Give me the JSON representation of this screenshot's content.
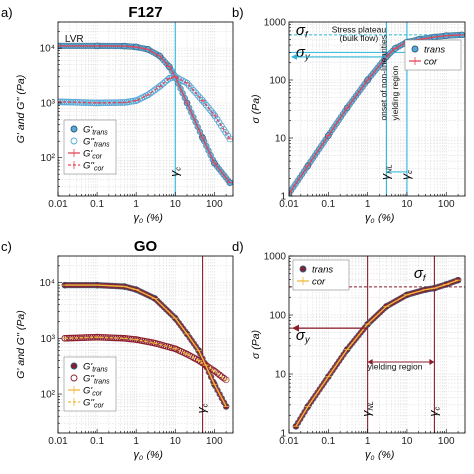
{
  "chart_data": [
    {
      "id": "a",
      "type": "line",
      "panel_label": "a)",
      "title": "F127",
      "xlabel": "γ0 (%)",
      "ylabel": "G' and G'' (Pa)",
      "xscale": "log",
      "yscale": "log",
      "xlim": [
        0.01,
        300
      ],
      "ylim": [
        20,
        30000
      ],
      "xticks": [
        0.01,
        0.1,
        1,
        10,
        100
      ],
      "xticklabels": [
        "0.01",
        "0.1",
        "1",
        "10",
        "100"
      ],
      "yticks": [
        100,
        1000,
        10000
      ],
      "yticklabels": [
        "10²",
        "10³",
        "10⁴"
      ],
      "grid": true,
      "annotations": [
        {
          "text": "LVR",
          "x": 0.015,
          "y": 13000
        },
        {
          "text": "γc",
          "x": 10,
          "y": 45
        }
      ],
      "vlines": [
        {
          "x": 10,
          "label": "γc",
          "color": "#29b6d8"
        }
      ],
      "legend": {
        "position": "lower-left",
        "entries": [
          "G'trans",
          "G''trans",
          "G'cor",
          "G''cor"
        ]
      },
      "series": [
        {
          "name": "G'trans",
          "style": "filled-circle",
          "color": "#5aa9d6",
          "x": [
            0.01,
            0.1,
            0.5,
            1,
            2,
            4,
            7,
            10,
            20,
            50,
            100,
            250
          ],
          "y": [
            11000,
            11000,
            10900,
            10500,
            9500,
            7200,
            4600,
            3000,
            1000,
            230,
            80,
            35
          ]
        },
        {
          "name": "G''trans",
          "style": "open-circle",
          "color": "#5aa9d6",
          "x": [
            0.01,
            0.1,
            0.5,
            1,
            2,
            4,
            7,
            10,
            20,
            50,
            100,
            250
          ],
          "y": [
            1050,
            1000,
            1020,
            1100,
            1400,
            2000,
            2800,
            3000,
            2300,
            1100,
            600,
            220
          ]
        },
        {
          "name": "G'cor",
          "style": "solid-line",
          "color": "#e0485a",
          "x": [
            0.01,
            0.1,
            0.5,
            1,
            2,
            4,
            7,
            10,
            20,
            50,
            100,
            250
          ],
          "y": [
            11000,
            11000,
            10900,
            10500,
            9500,
            7200,
            4600,
            3000,
            1000,
            230,
            80,
            35
          ]
        },
        {
          "name": "G''cor",
          "style": "dashed-line",
          "color": "#e0485a",
          "x": [
            0.01,
            0.1,
            0.5,
            1,
            2,
            4,
            7,
            10,
            20,
            50,
            100,
            250
          ],
          "y": [
            1050,
            1000,
            1020,
            1100,
            1400,
            2000,
            2800,
            3000,
            2300,
            1100,
            600,
            220
          ]
        }
      ]
    },
    {
      "id": "b",
      "type": "line",
      "panel_label": "b)",
      "title": "",
      "xlabel": "γ0 (%)",
      "ylabel": "σ (Pa)",
      "xscale": "log",
      "yscale": "log",
      "xlim": [
        0.01,
        300
      ],
      "ylim": [
        1,
        1000
      ],
      "xticks": [
        0.01,
        0.1,
        1,
        10,
        100
      ],
      "xticklabels": [
        "0.01",
        "0.1",
        "1",
        "10",
        "100"
      ],
      "yticks": [
        1,
        10,
        100,
        1000
      ],
      "yticklabels": [
        "1",
        "10",
        "100",
        "1000"
      ],
      "grid": true,
      "annotations": [
        {
          "text": "σf",
          "x": 0.015,
          "y": 600
        },
        {
          "text": "Stress plateau",
          "x": 0.6,
          "y": 660
        },
        {
          "text": "(bulk flow)",
          "x": 0.6,
          "y": 470
        },
        {
          "text": "σy",
          "x": 0.015,
          "y": 250
        },
        {
          "text": "onset of non-linearities",
          "x": 3,
          "y": 20
        },
        {
          "text": "yielding region",
          "x": 6,
          "y": 20
        },
        {
          "text": "γNL",
          "x": 3,
          "y": 1.9
        },
        {
          "text": "γc",
          "x": 10,
          "y": 1.9
        }
      ],
      "vlines": [
        {
          "x": 3,
          "label": "γNL",
          "color": "#29b6d8"
        },
        {
          "x": 10,
          "label": "γc",
          "color": "#29b6d8"
        }
      ],
      "hlines": [
        {
          "y": 600,
          "label": "σf",
          "color": "#29b6d8"
        },
        {
          "y": 300,
          "label": "σy",
          "color": "#29b6d8"
        }
      ],
      "legend": {
        "position": "upper-right",
        "entries": [
          "trans",
          "cor"
        ]
      },
      "series": [
        {
          "name": "trans",
          "style": "filled-circle",
          "color": "#5aa9d6",
          "x": [
            0.01,
            0.03,
            0.1,
            0.3,
            1,
            3,
            5,
            10,
            20,
            50,
            100,
            250
          ],
          "y": [
            1.1,
            3.3,
            11,
            33,
            100,
            250,
            350,
            450,
            500,
            550,
            580,
            600
          ]
        },
        {
          "name": "cor",
          "style": "solid-line",
          "color": "#e0485a",
          "x": [
            0.01,
            0.03,
            0.1,
            0.3,
            1,
            3,
            5,
            10,
            20,
            50,
            100,
            250
          ],
          "y": [
            1.1,
            3.3,
            11,
            33,
            100,
            250,
            350,
            450,
            500,
            550,
            580,
            600
          ]
        }
      ]
    },
    {
      "id": "c",
      "type": "line",
      "panel_label": "c)",
      "title": "GO",
      "xlabel": "γ0 (%)",
      "ylabel": "G' and G'' (Pa)",
      "xscale": "log",
      "yscale": "log",
      "xlim": [
        0.01,
        300
      ],
      "ylim": [
        20,
        30000
      ],
      "xticks": [
        0.01,
        0.1,
        1,
        10,
        100
      ],
      "xticklabels": [
        "0.01",
        "0.1",
        "1",
        "10",
        "100"
      ],
      "yticks": [
        100,
        1000,
        10000
      ],
      "yticklabels": [
        "10²",
        "10³",
        "10⁴"
      ],
      "grid": true,
      "annotations": [
        {
          "text": "γc",
          "x": 50,
          "y": 45
        }
      ],
      "vlines": [
        {
          "x": 50,
          "label": "γc",
          "color": "#8b1e2c"
        }
      ],
      "legend": {
        "position": "lower-left",
        "entries": [
          "G'trans",
          "G''trans",
          "G'cor",
          "G''cor"
        ]
      },
      "series": [
        {
          "name": "G'trans",
          "style": "filled-circle",
          "color": "#8b1e2c",
          "x": [
            0.015,
            0.1,
            0.5,
            1,
            3,
            10,
            20,
            40,
            60,
            100,
            200
          ],
          "y": [
            9000,
            9000,
            8500,
            7500,
            5200,
            2300,
            1200,
            600,
            330,
            150,
            60
          ]
        },
        {
          "name": "G''trans",
          "style": "open-circle",
          "color": "#8b1e2c",
          "x": [
            0.015,
            0.1,
            0.5,
            1,
            3,
            10,
            20,
            40,
            60,
            100,
            200
          ],
          "y": [
            1000,
            1050,
            1000,
            950,
            820,
            650,
            520,
            400,
            330,
            260,
            180
          ]
        },
        {
          "name": "G'cor",
          "style": "solid-line",
          "color": "#f2b83a",
          "x": [
            0.015,
            0.1,
            0.5,
            1,
            3,
            10,
            20,
            40,
            60,
            100,
            200
          ],
          "y": [
            9000,
            9000,
            8500,
            7500,
            5200,
            2300,
            1200,
            600,
            330,
            150,
            60
          ]
        },
        {
          "name": "G''cor",
          "style": "dashed-line",
          "color": "#f2b83a",
          "x": [
            0.015,
            0.1,
            0.5,
            1,
            3,
            10,
            20,
            40,
            60,
            100,
            200
          ],
          "y": [
            1000,
            1050,
            1000,
            950,
            820,
            650,
            520,
            400,
            330,
            260,
            180
          ]
        }
      ]
    },
    {
      "id": "d",
      "type": "line",
      "panel_label": "d)",
      "title": "",
      "xlabel": "γ0 (%)",
      "ylabel": "σ (Pa)",
      "xscale": "log",
      "yscale": "log",
      "xlim": [
        0.01,
        300
      ],
      "ylim": [
        1,
        1000
      ],
      "xticks": [
        0.01,
        0.1,
        1,
        10,
        100
      ],
      "xticklabels": [
        "0.01",
        "0.1",
        "1",
        "10",
        "100"
      ],
      "yticks": [
        1,
        10,
        100,
        1000
      ],
      "yticklabels": [
        "1",
        "10",
        "100",
        "1000"
      ],
      "grid": true,
      "annotations": [
        {
          "text": "σf",
          "x": 15,
          "y": 420
        },
        {
          "text": "σy",
          "x": 0.015,
          "y": 38
        },
        {
          "text": "yielding region",
          "x": 5,
          "y": 12
        },
        {
          "text": "γNL",
          "x": 1,
          "y": 1.9
        },
        {
          "text": "γc",
          "x": 50,
          "y": 1.9
        }
      ],
      "vlines": [
        {
          "x": 1,
          "label": "γNL",
          "color": "#8b1e2c"
        },
        {
          "x": 50,
          "label": "γc",
          "color": "#8b1e2c"
        }
      ],
      "hlines": [
        {
          "y": 300,
          "label": "σf",
          "color": "#8b1e2c"
        },
        {
          "y": 60,
          "label": "σy",
          "color": "#8b1e2c"
        }
      ],
      "legend": {
        "position": "upper-left",
        "entries": [
          "trans",
          "cor"
        ]
      },
      "series": [
        {
          "name": "trans",
          "style": "filled-circle",
          "color": "#8b1e2c",
          "x": [
            0.015,
            0.03,
            0.1,
            0.3,
            1,
            3,
            10,
            30,
            50,
            100,
            200
          ],
          "y": [
            1.3,
            2.8,
            9,
            26,
            70,
            140,
            220,
            270,
            285,
            330,
            390
          ]
        },
        {
          "name": "cor",
          "style": "solid-line",
          "color": "#f2b83a",
          "x": [
            0.015,
            0.03,
            0.1,
            0.3,
            1,
            3,
            10,
            30,
            50,
            100,
            200
          ],
          "y": [
            1.3,
            2.8,
            9,
            26,
            70,
            140,
            220,
            270,
            285,
            330,
            390
          ]
        }
      ]
    }
  ]
}
